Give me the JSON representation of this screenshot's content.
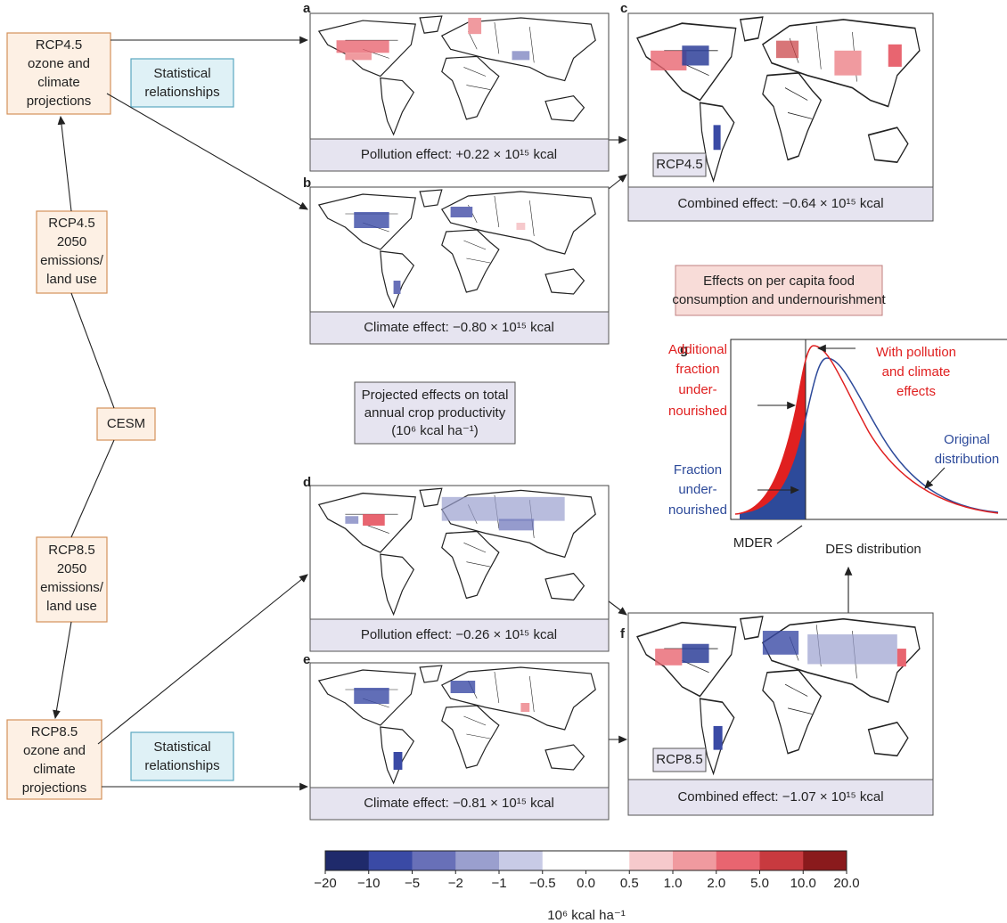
{
  "left_boxes": [
    {
      "lines": [
        "RCP4.5",
        "ozone and",
        "climate",
        "projections"
      ]
    },
    {
      "lines": [
        "RCP4.5",
        "2050",
        "emissions/",
        "land use"
      ]
    },
    {
      "lines": [
        "CESM"
      ]
    },
    {
      "lines": [
        "RCP8.5",
        "2050",
        "emissions/",
        "land use"
      ]
    },
    {
      "lines": [
        "RCP8.5",
        "ozone and",
        "climate",
        "projections"
      ]
    }
  ],
  "method_boxes": [
    {
      "lines": [
        "Statistical",
        "relationships"
      ]
    },
    {
      "lines": [
        "Statistical",
        "relationships"
      ]
    }
  ],
  "panels": [
    {
      "letter": "a",
      "caption": "Pollution effect: +0.22 × 10¹⁵ kcal"
    },
    {
      "letter": "b",
      "caption": "Climate effect: −0.80 × 10¹⁵ kcal"
    },
    {
      "letter": "c",
      "scenario": "RCP4.5",
      "caption": "Combined effect: −0.64 × 10¹⁵ kcal"
    },
    {
      "letter": "d",
      "caption": "Pollution effect: −0.26 × 10¹⁵ kcal"
    },
    {
      "letter": "e",
      "caption": "Climate effect: −0.81 × 10¹⁵ kcal"
    },
    {
      "letter": "f",
      "scenario": "RCP8.5",
      "caption": "Combined effect: −1.07 × 10¹⁵ kcal"
    }
  ],
  "center_box": {
    "lines": [
      "Projected effects on total",
      "annual crop productivity",
      "(10⁶ kcal ha⁻¹)"
    ]
  },
  "food_box": {
    "lines": [
      "Effects on per capita food",
      "consumption and undernourishment"
    ]
  },
  "distribution": {
    "letter": "g",
    "with_effects": [
      "With pollution",
      "and climate",
      "effects"
    ],
    "additional": [
      "Additional",
      "fraction",
      "under-",
      "nourished"
    ],
    "fraction": [
      "Fraction",
      "under-",
      "nourished"
    ],
    "original": [
      "Original",
      "distribution"
    ],
    "mder": "MDER",
    "des": "DES distribution"
  },
  "colorbar": {
    "ticks": [
      "−20",
      "−10",
      "−5",
      "−2",
      "−1",
      "−0.5",
      "0.0",
      "0.5",
      "1.0",
      "2.0",
      "5.0",
      "10.0",
      "20.0"
    ],
    "colors": [
      "#1f2a6b",
      "#3a4aa5",
      "#6870b8",
      "#9a9fce",
      "#c8cbe6",
      "#ffffff",
      "#ffffff",
      "#f6c9cc",
      "#f09a9f",
      "#e86570",
      "#c83a3f",
      "#8a1a1c"
    ],
    "unit": "10⁶ kcal ha⁻¹"
  }
}
